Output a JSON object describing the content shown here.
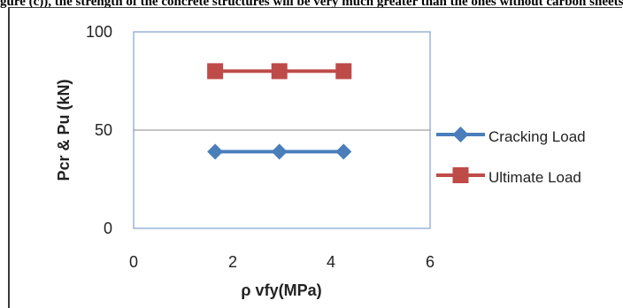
{
  "caption": "gure (c)), the strength of the concrete structures will be very much greater than the ones without carbon sheets (",
  "chart_data": {
    "type": "line",
    "x": [
      1.65,
      2.95,
      4.25
    ],
    "series": [
      {
        "name": "Cracking Load",
        "values": [
          39,
          39,
          39
        ],
        "color": "#4a7ebb",
        "marker": "diamond"
      },
      {
        "name": "Ultimate Load",
        "values": [
          80,
          80,
          80
        ],
        "color": "#be4b48",
        "marker": "square"
      }
    ],
    "title": "",
    "xlabel": "ρ vfy(MPa)",
    "ylabel": "Pcr & Pu (kN)",
    "xlim": [
      0,
      6
    ],
    "ylim": [
      0,
      100
    ],
    "xticks": [
      "0",
      "2",
      "4",
      "6"
    ],
    "yticks": [
      "0",
      "50",
      "100"
    ],
    "grid": "horizontal major gridlines",
    "legend_position": "right"
  }
}
